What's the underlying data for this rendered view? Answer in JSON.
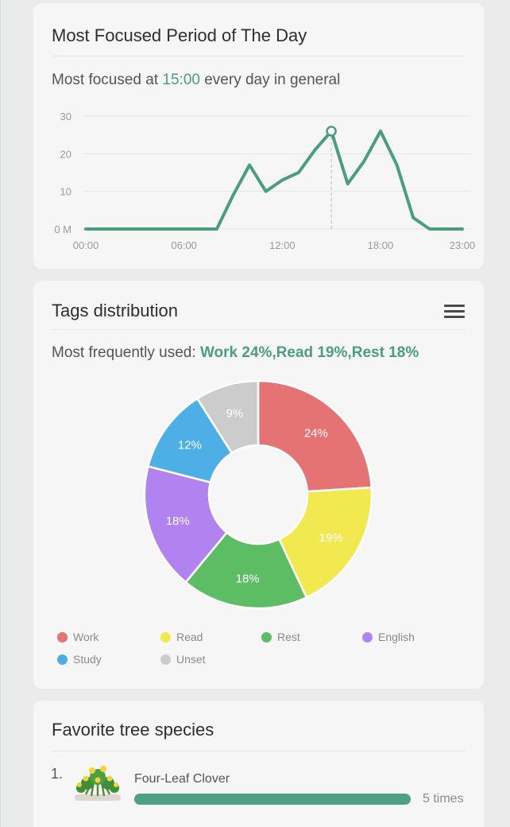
{
  "focus_card": {
    "title": "Most Focused Period of The Day",
    "subline_prefix": "Most focused at ",
    "subline_time": "15:00",
    "subline_suffix": " every day in general"
  },
  "chart_data": {
    "type": "line",
    "x": [
      0,
      1,
      2,
      3,
      4,
      5,
      6,
      7,
      8,
      9,
      10,
      11,
      12,
      13,
      14,
      15,
      16,
      17,
      18,
      19,
      20,
      21,
      22,
      23
    ],
    "x_tick_labels": [
      "00:00",
      "06:00",
      "12:00",
      "18:00",
      "23:00"
    ],
    "x_tick_positions": [
      0,
      6,
      12,
      18,
      23
    ],
    "y_tick_labels": [
      "0 M",
      "10",
      "20",
      "30"
    ],
    "y_tick_values": [
      0,
      10,
      20,
      30
    ],
    "ylim": [
      0,
      30
    ],
    "series": [
      {
        "values": [
          0,
          0,
          0,
          0,
          0,
          0,
          0,
          0,
          0,
          9,
          17,
          10,
          13,
          15,
          21,
          26,
          12,
          18,
          26,
          17,
          3,
          0,
          0,
          0
        ]
      }
    ],
    "highlight_x": 15,
    "color": "#4b9e7c",
    "grid": true
  },
  "tags_card": {
    "title": "Tags distribution",
    "subline_prefix": "Most frequently used: ",
    "subline_highlight": "Work 24%,Read 19%,Rest 18%",
    "pie": {
      "type": "pie",
      "slices": [
        {
          "name": "Work",
          "value": 24,
          "label": "24%",
          "color": "#e57373"
        },
        {
          "name": "Read",
          "value": 19,
          "label": "19%",
          "color": "#f2e84f"
        },
        {
          "name": "Rest",
          "value": 18,
          "label": "18%",
          "color": "#5cbd64"
        },
        {
          "name": "English",
          "value": 18,
          "label": "18%",
          "color": "#b083f0"
        },
        {
          "name": "Study",
          "value": 12,
          "label": "12%",
          "color": "#4eaee6"
        },
        {
          "name": "Unset",
          "value": 9,
          "label": "9%",
          "color": "#cccccc"
        }
      ]
    },
    "legend": [
      "Work",
      "Read",
      "Rest",
      "English",
      "Study",
      "Unset"
    ]
  },
  "trees_card": {
    "title": "Favorite tree species",
    "items": [
      {
        "rank": "1.",
        "name": "Four-Leaf Clover",
        "count": "5 times",
        "fraction": 1.0
      }
    ]
  },
  "icons": {
    "list": "list-icon",
    "tree": "clover-tree-icon"
  }
}
